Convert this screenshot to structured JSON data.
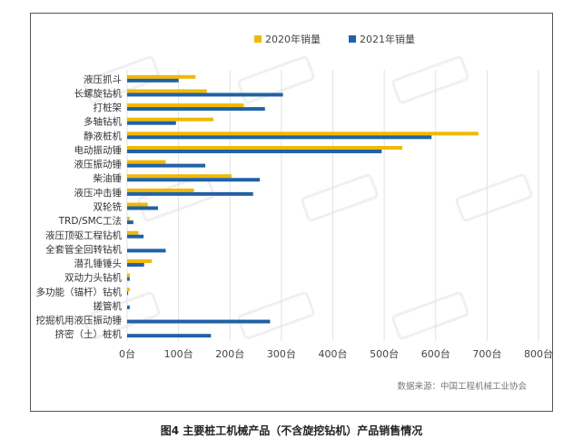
{
  "caption": "图4  主要桩工机械产品（不含旋挖钻机）产品销售情况",
  "source": "数据来源：中国工程机械工业协会",
  "colors": {
    "series_2020": "#F2B800",
    "series_2021": "#1F62A6"
  },
  "chart_data": {
    "type": "bar",
    "orientation": "horizontal",
    "title": "",
    "xlabel": "",
    "ylabel": "",
    "xlim": [
      0,
      800
    ],
    "tick_step": 100,
    "tick_unit": "台",
    "grid": true,
    "legend_position": "top-right",
    "categories": [
      "液压抓斗",
      "长螺旋钻机",
      "打桩架",
      "多轴钻机",
      "静液桩机",
      "电动振动锤",
      "液压振动锤",
      "柴油锤",
      "液压冲击锤",
      "双轮铣",
      "TRD/SMC工法",
      "液压顶驱工程钻机",
      "全套管全回转钻机",
      "潜孔锤锤头",
      "双动力头钻机",
      "多功能（锚杆）钻机",
      "搓管机",
      "挖掘机用液压振动锤",
      "挤密（土）桩机"
    ],
    "series": [
      {
        "name": "2020年销量",
        "values": [
          133,
          155,
          227,
          168,
          683,
          535,
          75,
          203,
          130,
          40,
          5,
          22,
          0,
          48,
          5,
          5,
          0,
          0,
          0
        ]
      },
      {
        "name": "2021年销量",
        "values": [
          100,
          303,
          268,
          95,
          592,
          495,
          152,
          258,
          245,
          60,
          12,
          32,
          75,
          33,
          5,
          2,
          5,
          278,
          163
        ]
      }
    ]
  }
}
